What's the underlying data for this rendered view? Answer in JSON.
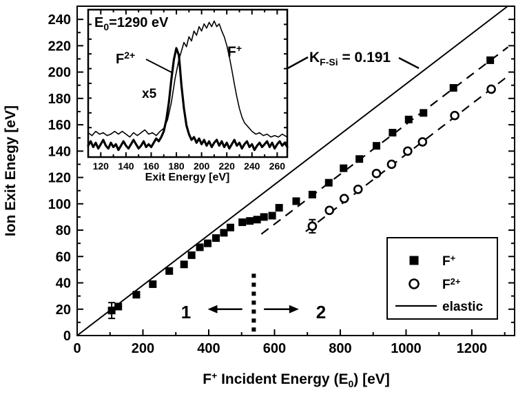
{
  "figure": {
    "background": "#ffffff",
    "ink": "#000000"
  },
  "chart_data": {
    "main": {
      "type": "scatter",
      "xlabel_text": "F+ Incident Energy (E0) [eV]",
      "xlabel_parts": [
        {
          "t": "F"
        },
        {
          "t": "+",
          "sup": true
        },
        {
          "t": " Incident Energy (E"
        },
        {
          "t": "0",
          "sub": true
        },
        {
          "t": ") [eV]"
        }
      ],
      "ylabel": "Ion Exit Enegy [eV]",
      "xlim": [
        0,
        1330
      ],
      "ylim": [
        0,
        250
      ],
      "x_major_ticks": [
        0,
        200,
        400,
        600,
        800,
        1000,
        1200
      ],
      "x_minor_step": 100,
      "y_major_ticks": [
        0,
        20,
        40,
        60,
        80,
        100,
        120,
        140,
        160,
        180,
        200,
        220,
        240
      ],
      "y_minor_step": 10,
      "grid": false,
      "legend_position": "lower-right",
      "series": [
        {
          "name": "F+",
          "marker": "filled-square",
          "points": [
            [
              105,
              19
            ],
            [
              125,
              22
            ],
            [
              180,
              31
            ],
            [
              230,
              39
            ],
            [
              280,
              49
            ],
            [
              325,
              54
            ],
            [
              348,
              61
            ],
            [
              373,
              67
            ],
            [
              397,
              70
            ],
            [
              422,
              74
            ],
            [
              446,
              78
            ],
            [
              466,
              82
            ],
            [
              502,
              86
            ],
            [
              525,
              87
            ],
            [
              547,
              88
            ],
            [
              568,
              90
            ],
            [
              593,
              91
            ],
            [
              614,
              97
            ],
            [
              666,
              102
            ],
            [
              715,
              107
            ],
            [
              765,
              116
            ],
            [
              810,
              127
            ],
            [
              858,
              134
            ],
            [
              910,
              144
            ],
            [
              959,
              154
            ],
            [
              1008,
              164
            ],
            [
              1053,
              169
            ],
            [
              1144,
              188
            ],
            [
              1256,
              209
            ]
          ],
          "error_bars": [
            {
              "x": 105,
              "y": 19,
              "e": 6
            }
          ],
          "fit": {
            "style": "dashed",
            "from": [
              560,
              77
            ],
            "to": [
              1310,
              219
            ]
          }
        },
        {
          "name": "F2+",
          "marker": "open-circle",
          "points": [
            [
              715,
              83
            ],
            [
              767,
              95
            ],
            [
              812,
              104
            ],
            [
              854,
              111
            ],
            [
              910,
              123
            ],
            [
              956,
              130
            ],
            [
              1005,
              140
            ],
            [
              1050,
              147
            ],
            [
              1148,
              167
            ],
            [
              1259,
              187
            ]
          ],
          "error_bars": [
            {
              "x": 715,
              "y": 83,
              "e": 5
            }
          ],
          "fit": {
            "style": "dashed",
            "from": [
              695,
              79
            ],
            "to": [
              1310,
              197
            ]
          }
        },
        {
          "name": "elastic",
          "marker": "line",
          "line": {
            "from": [
              0,
              0
            ],
            "to": [
              1309,
              250
            ]
          }
        }
      ],
      "legend": {
        "entries": [
          {
            "marker": "filled-square",
            "label_parts": [
              {
                "t": "F"
              },
              {
                "t": "+",
                "sup": true
              }
            ]
          },
          {
            "marker": "open-circle",
            "label_parts": [
              {
                "t": "F"
              },
              {
                "t": "2+",
                "sup": true
              }
            ]
          },
          {
            "marker": "line",
            "label_parts": [
              {
                "t": "elastic"
              }
            ]
          }
        ]
      },
      "annotations": {
        "k_factor": {
          "text": "K F-Si = 0.191",
          "parts": [
            {
              "t": "K"
            },
            {
              "t": "F-Si",
              "sub": true
            },
            {
              "t": " = 0.191"
            }
          ]
        },
        "regions": {
          "label_left": "1",
          "label_right": "2",
          "divider_x": 537,
          "divider_y": [
            3,
            47
          ],
          "arrow_left": {
            "from": [
              502,
              20
            ],
            "to": [
              397,
              20
            ]
          },
          "arrow_right": {
            "from": [
              568,
              20
            ],
            "to": [
              674,
              20
            ]
          }
        }
      }
    },
    "inset": {
      "type": "line",
      "xlabel": "Exit Energy [eV]",
      "xlim": [
        110,
        268
      ],
      "x_major_ticks": [
        120,
        140,
        160,
        180,
        200,
        220,
        240,
        260
      ],
      "x_minor_step": 10,
      "y_axis": "intensity (arbitrary units, unlabeled ticks)",
      "annotations": {
        "e0_parts": [
          {
            "t": "E"
          },
          {
            "t": "0",
            "sub": true
          },
          {
            "t": "=1290 eV"
          }
        ],
        "f2_parts": [
          {
            "t": "F"
          },
          {
            "t": "2+",
            "sup": true
          }
        ],
        "f1_parts": [
          {
            "t": "F"
          },
          {
            "t": "+",
            "sup": true
          }
        ],
        "scale_label": "x5",
        "elastic_arrow_x": 249
      },
      "series": [
        {
          "name": "F+ spectrum",
          "stroke": "thin",
          "points": [
            [
              110,
              17
            ],
            [
              113,
              15
            ],
            [
              116,
              18
            ],
            [
              119,
              16
            ],
            [
              122,
              17
            ],
            [
              125,
              15
            ],
            [
              128,
              16
            ],
            [
              131,
              18
            ],
            [
              134,
              16
            ],
            [
              137,
              18
            ],
            [
              140,
              16
            ],
            [
              143,
              14
            ],
            [
              146,
              17
            ],
            [
              149,
              15
            ],
            [
              152,
              17
            ],
            [
              155,
              19
            ],
            [
              158,
              16
            ],
            [
              161,
              17
            ],
            [
              164,
              15
            ],
            [
              167,
              18
            ],
            [
              170,
              20
            ],
            [
              173,
              26
            ],
            [
              176,
              38
            ],
            [
              179,
              55
            ],
            [
              182,
              68
            ],
            [
              184,
              74
            ],
            [
              186,
              80
            ],
            [
              188,
              77
            ],
            [
              190,
              84
            ],
            [
              192,
              81
            ],
            [
              194,
              88
            ],
            [
              196,
              85
            ],
            [
              198,
              91
            ],
            [
              200,
              88
            ],
            [
              202,
              93
            ],
            [
              204,
              90
            ],
            [
              206,
              94
            ],
            [
              208,
              91
            ],
            [
              210,
              95
            ],
            [
              212,
              91
            ],
            [
              214,
              93
            ],
            [
              216,
              88
            ],
            [
              218,
              84
            ],
            [
              220,
              78
            ],
            [
              222,
              70
            ],
            [
              224,
              61
            ],
            [
              226,
              51
            ],
            [
              228,
              42
            ],
            [
              230,
              34
            ],
            [
              232,
              28
            ],
            [
              234,
              24
            ],
            [
              237,
              21
            ],
            [
              240,
              18
            ],
            [
              243,
              16
            ],
            [
              246,
              17
            ],
            [
              249,
              15
            ],
            [
              252,
              16
            ],
            [
              255,
              14
            ],
            [
              258,
              15
            ],
            [
              261,
              14
            ],
            [
              264,
              16
            ],
            [
              268,
              14
            ]
          ]
        },
        {
          "name": "F2+ spectrum (x5)",
          "stroke": "thick",
          "points": [
            [
              110,
              8
            ],
            [
              112,
              11
            ],
            [
              114,
              7
            ],
            [
              116,
              10
            ],
            [
              118,
              6
            ],
            [
              120,
              9
            ],
            [
              122,
              12
            ],
            [
              124,
              8
            ],
            [
              126,
              6
            ],
            [
              128,
              10
            ],
            [
              130,
              7
            ],
            [
              132,
              9
            ],
            [
              134,
              5
            ],
            [
              136,
              8
            ],
            [
              138,
              11
            ],
            [
              140,
              8
            ],
            [
              142,
              6
            ],
            [
              144,
              9
            ],
            [
              146,
              12
            ],
            [
              148,
              9
            ],
            [
              150,
              6
            ],
            [
              152,
              8
            ],
            [
              154,
              11
            ],
            [
              156,
              7
            ],
            [
              158,
              9
            ],
            [
              160,
              7
            ],
            [
              162,
              10
            ],
            [
              164,
              13
            ],
            [
              166,
              11
            ],
            [
              168,
              14
            ],
            [
              170,
              18
            ],
            [
              172,
              26
            ],
            [
              174,
              38
            ],
            [
              176,
              54
            ],
            [
              178,
              68
            ],
            [
              180,
              76
            ],
            [
              182,
              71
            ],
            [
              183,
              61
            ],
            [
              184,
              50
            ],
            [
              186,
              34
            ],
            [
              188,
              22
            ],
            [
              190,
              16
            ],
            [
              192,
              12
            ],
            [
              194,
              14
            ],
            [
              196,
              10
            ],
            [
              198,
              13
            ],
            [
              200,
              9
            ],
            [
              202,
              12
            ],
            [
              204,
              8
            ],
            [
              206,
              11
            ],
            [
              208,
              7
            ],
            [
              210,
              10
            ],
            [
              212,
              12
            ],
            [
              214,
              8
            ],
            [
              216,
              11
            ],
            [
              218,
              7
            ],
            [
              220,
              10
            ],
            [
              222,
              6
            ],
            [
              224,
              9
            ],
            [
              226,
              12
            ],
            [
              228,
              8
            ],
            [
              230,
              10
            ],
            [
              232,
              6
            ],
            [
              234,
              9
            ],
            [
              236,
              11
            ],
            [
              238,
              7
            ],
            [
              240,
              9
            ],
            [
              242,
              5
            ],
            [
              244,
              8
            ],
            [
              246,
              10
            ],
            [
              248,
              7
            ],
            [
              250,
              9
            ],
            [
              252,
              11
            ],
            [
              254,
              7
            ],
            [
              256,
              10
            ],
            [
              258,
              6
            ],
            [
              260,
              9
            ],
            [
              262,
              11
            ],
            [
              264,
              8
            ],
            [
              266,
              10
            ],
            [
              268,
              7
            ]
          ]
        }
      ]
    }
  }
}
